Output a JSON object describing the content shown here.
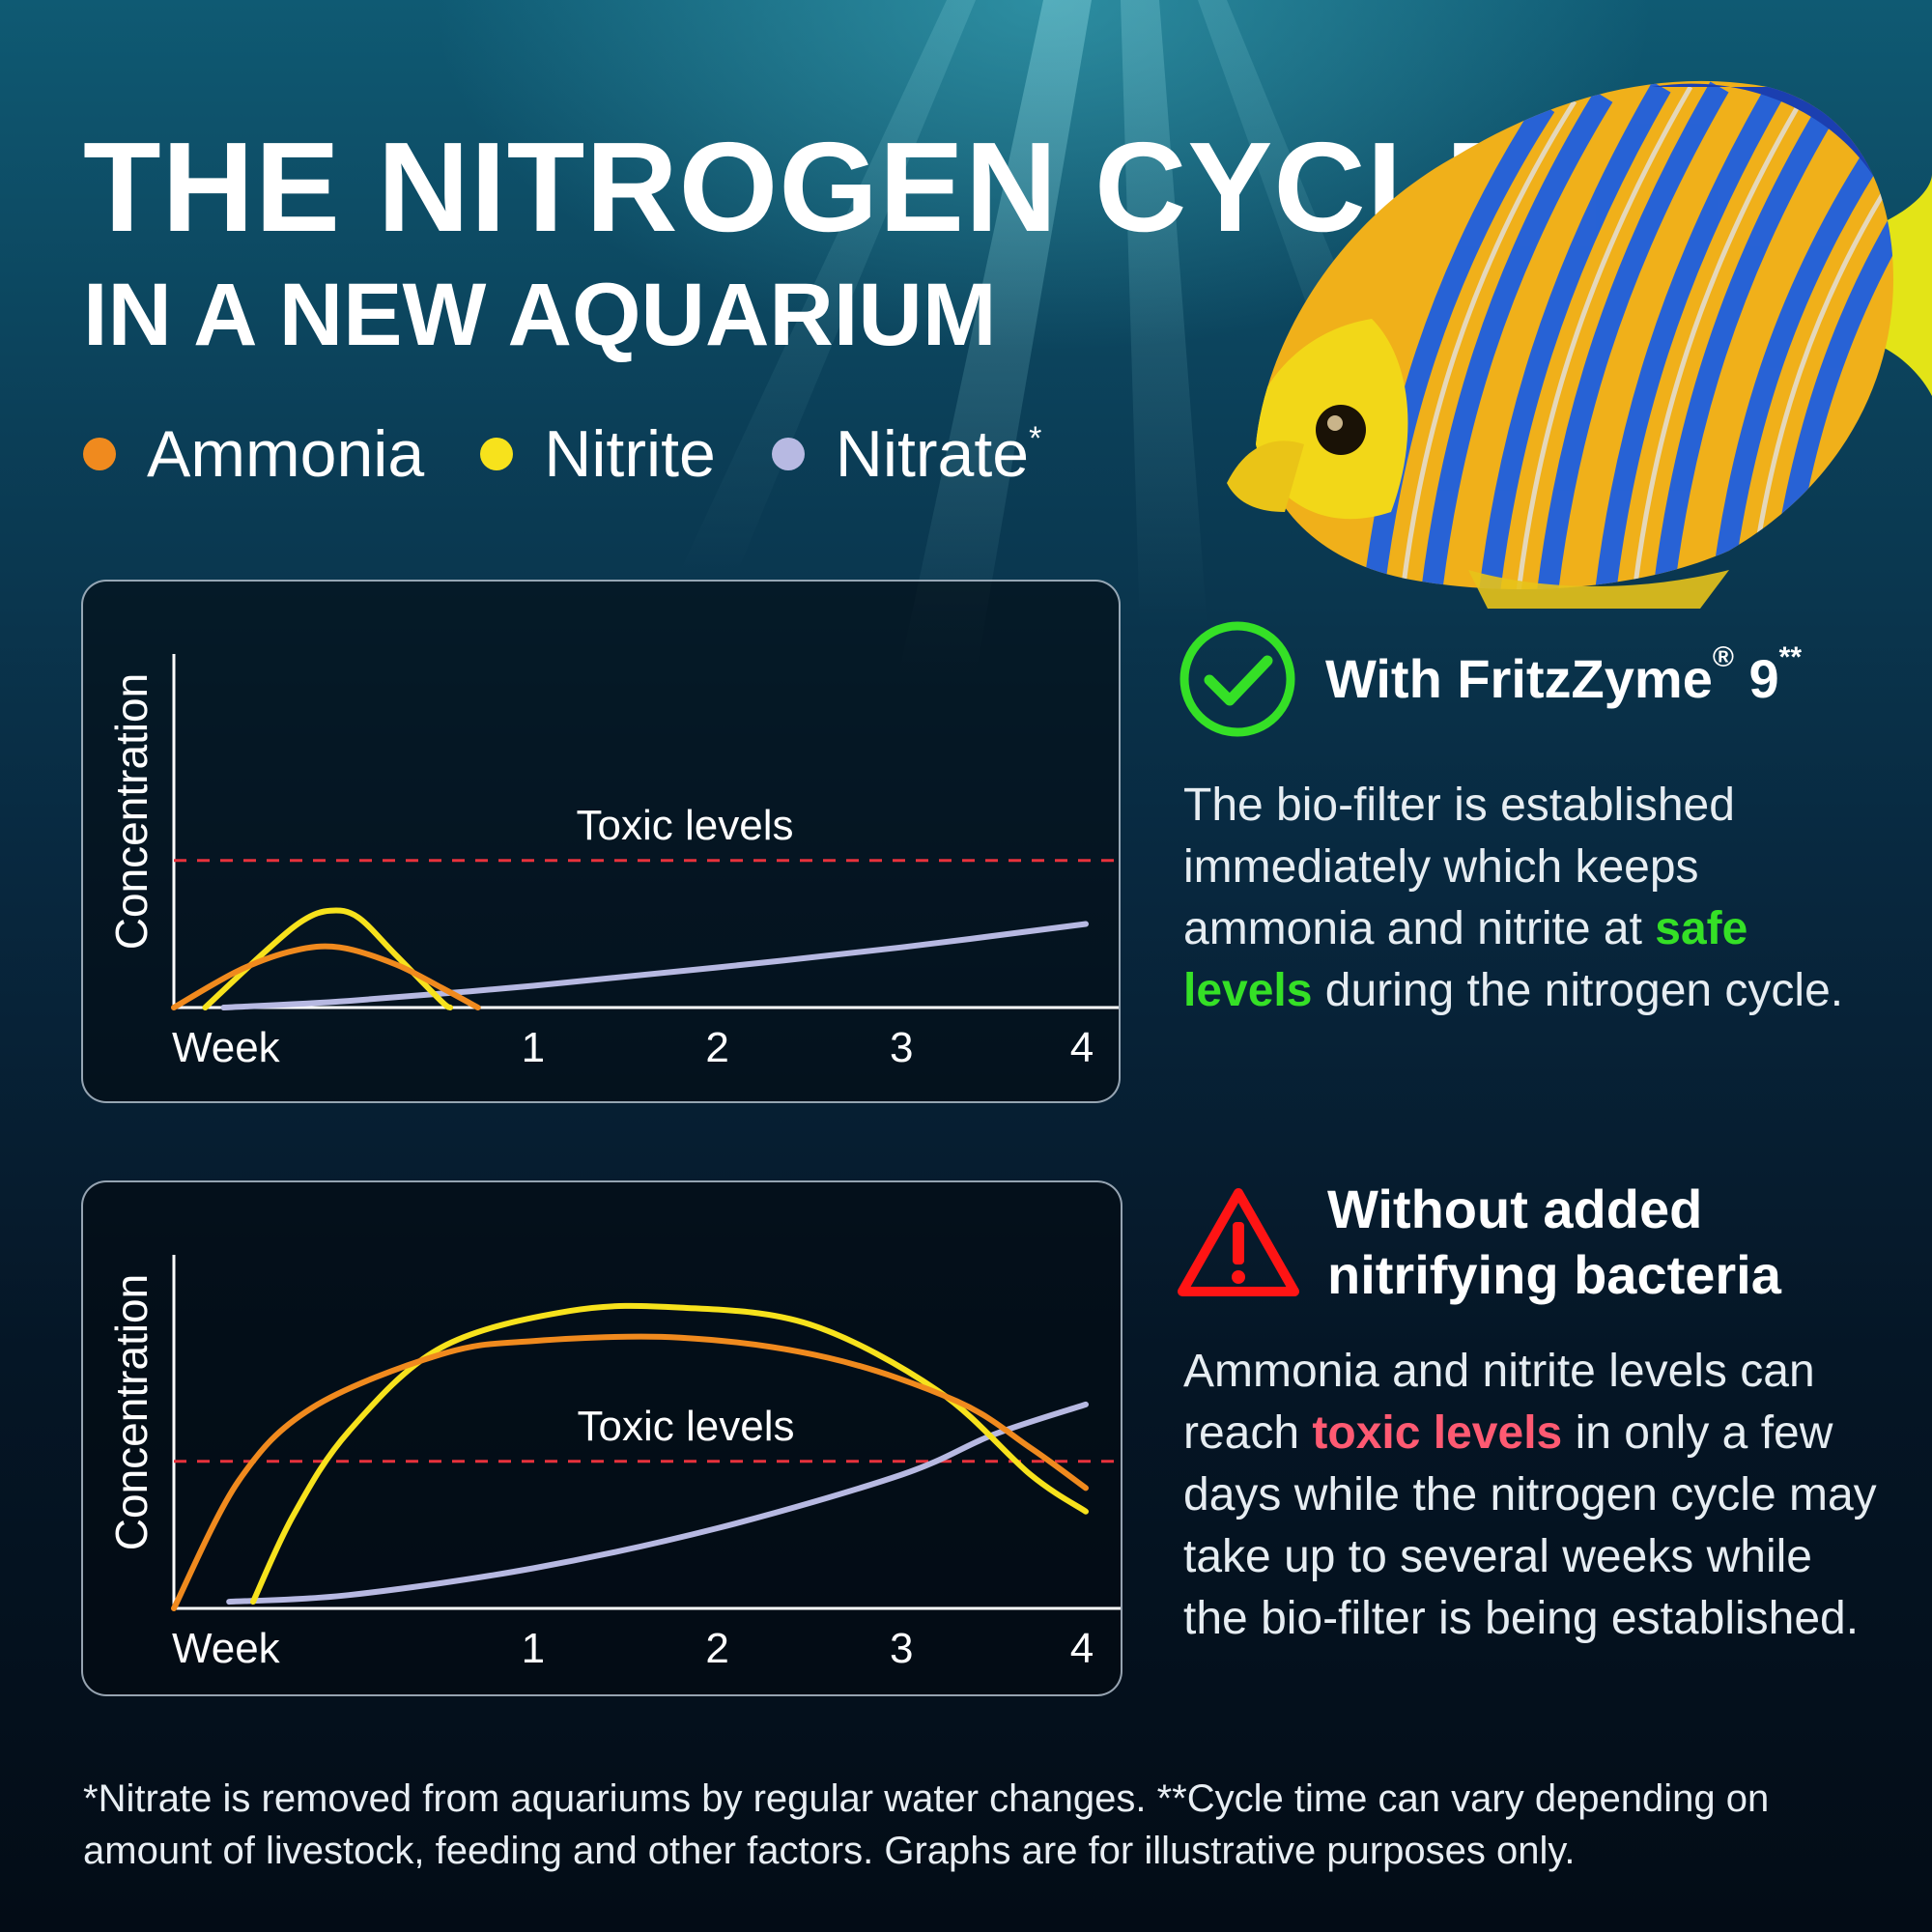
{
  "header": {
    "title": "THE NITROGEN CYCLE",
    "subtitle": "IN A NEW AQUARIUM"
  },
  "legend": [
    {
      "label": "Ammonia",
      "mark": "",
      "color": "#f08a1e"
    },
    {
      "label": "Nitrite",
      "mark": "",
      "color": "#f7e21c"
    },
    {
      "label": "Nitrate",
      "mark": "*",
      "color": "#b7b9e2"
    }
  ],
  "colors": {
    "threshold": "#e8323c",
    "axis": "#ffffff",
    "good": "#35e026",
    "bad": "#ff1414"
  },
  "chart_data": [
    {
      "type": "line",
      "ylabel": "Concentration",
      "xlabel": "Week",
      "x_ticks": [
        "1",
        "2",
        "3",
        "4"
      ],
      "xlim": [
        -0.95,
        4.0
      ],
      "ylim": [
        0,
        100
      ],
      "threshold": {
        "label": "Toxic levels",
        "value": 44
      },
      "series": [
        {
          "name": "Ammonia",
          "color": "#f08a1e",
          "points": [
            [
              -0.95,
              0
            ],
            [
              -0.6,
              11
            ],
            [
              -0.3,
              17
            ],
            [
              -0.05,
              18
            ],
            [
              0.25,
              13
            ],
            [
              0.5,
              6
            ],
            [
              0.7,
              0
            ]
          ]
        },
        {
          "name": "Nitrite",
          "color": "#f7e21c",
          "points": [
            [
              -0.78,
              0
            ],
            [
              -0.45,
              17
            ],
            [
              -0.25,
              26
            ],
            [
              -0.1,
              29
            ],
            [
              0.05,
              27
            ],
            [
              0.25,
              16
            ],
            [
              0.5,
              2
            ],
            [
              0.55,
              0
            ]
          ]
        },
        {
          "name": "Nitrate",
          "color": "#b7b9e2",
          "points": [
            [
              -0.68,
              0
            ],
            [
              0,
              2
            ],
            [
              1,
              6.5
            ],
            [
              2,
              12
            ],
            [
              3,
              18
            ],
            [
              4,
              25
            ]
          ]
        }
      ]
    },
    {
      "type": "line",
      "ylabel": "Concentration",
      "xlabel": "Week",
      "x_ticks": [
        "1",
        "2",
        "3",
        "4"
      ],
      "xlim": [
        -0.95,
        4.0
      ],
      "ylim": [
        0,
        100
      ],
      "threshold": {
        "label": "Toxic levels",
        "value": 44
      },
      "series": [
        {
          "name": "Ammonia",
          "color": "#f08a1e",
          "points": [
            [
              -0.95,
              0
            ],
            [
              -0.6,
              38
            ],
            [
              -0.2,
              60
            ],
            [
              0.5,
              76
            ],
            [
              1.0,
              80
            ],
            [
              1.8,
              81
            ],
            [
              2.6,
              75
            ],
            [
              3.3,
              62
            ],
            [
              3.7,
              48
            ],
            [
              4.0,
              36
            ]
          ]
        },
        {
          "name": "Nitrite",
          "color": "#f7e21c",
          "points": [
            [
              -0.52,
              2
            ],
            [
              -0.3,
              28
            ],
            [
              0,
              53
            ],
            [
              0.5,
              78
            ],
            [
              1.2,
              89
            ],
            [
              1.8,
              90
            ],
            [
              2.5,
              85
            ],
            [
              3.2,
              65
            ],
            [
              3.7,
              40
            ],
            [
              4.0,
              29
            ]
          ]
        },
        {
          "name": "Nitrate",
          "color": "#b7b9e2",
          "points": [
            [
              -0.65,
              2
            ],
            [
              0,
              4
            ],
            [
              1,
              12
            ],
            [
              2,
              24
            ],
            [
              3,
              40
            ],
            [
              3.5,
              52
            ],
            [
              4.0,
              61
            ]
          ]
        }
      ]
    }
  ],
  "with_product": {
    "icon": "check-circle-icon",
    "title": "With FritzZyme",
    "title_reg": "®",
    "title_num": " 9",
    "title_mark": "**",
    "body_1": "The bio-filter is established immediately which keeps ammonia and nitrite at ",
    "body_highlight": "safe levels",
    "body_2": " during the nitrogen cycle."
  },
  "without_product": {
    "icon": "warning-triangle-icon",
    "title_line1": "Without added",
    "title_line2": "nitrifying bacteria",
    "body_1": "Ammonia and nitrite levels can reach ",
    "body_highlight": "toxic levels",
    "body_2": " in only a few days while the nitrogen cycle may take up to several weeks while the bio-filter is being established."
  },
  "footnote": "*Nitrate is removed from aquariums by regular water changes. **Cycle time can vary depending on amount of livestock, feeding and other factors. Graphs are for illustrative purposes only."
}
